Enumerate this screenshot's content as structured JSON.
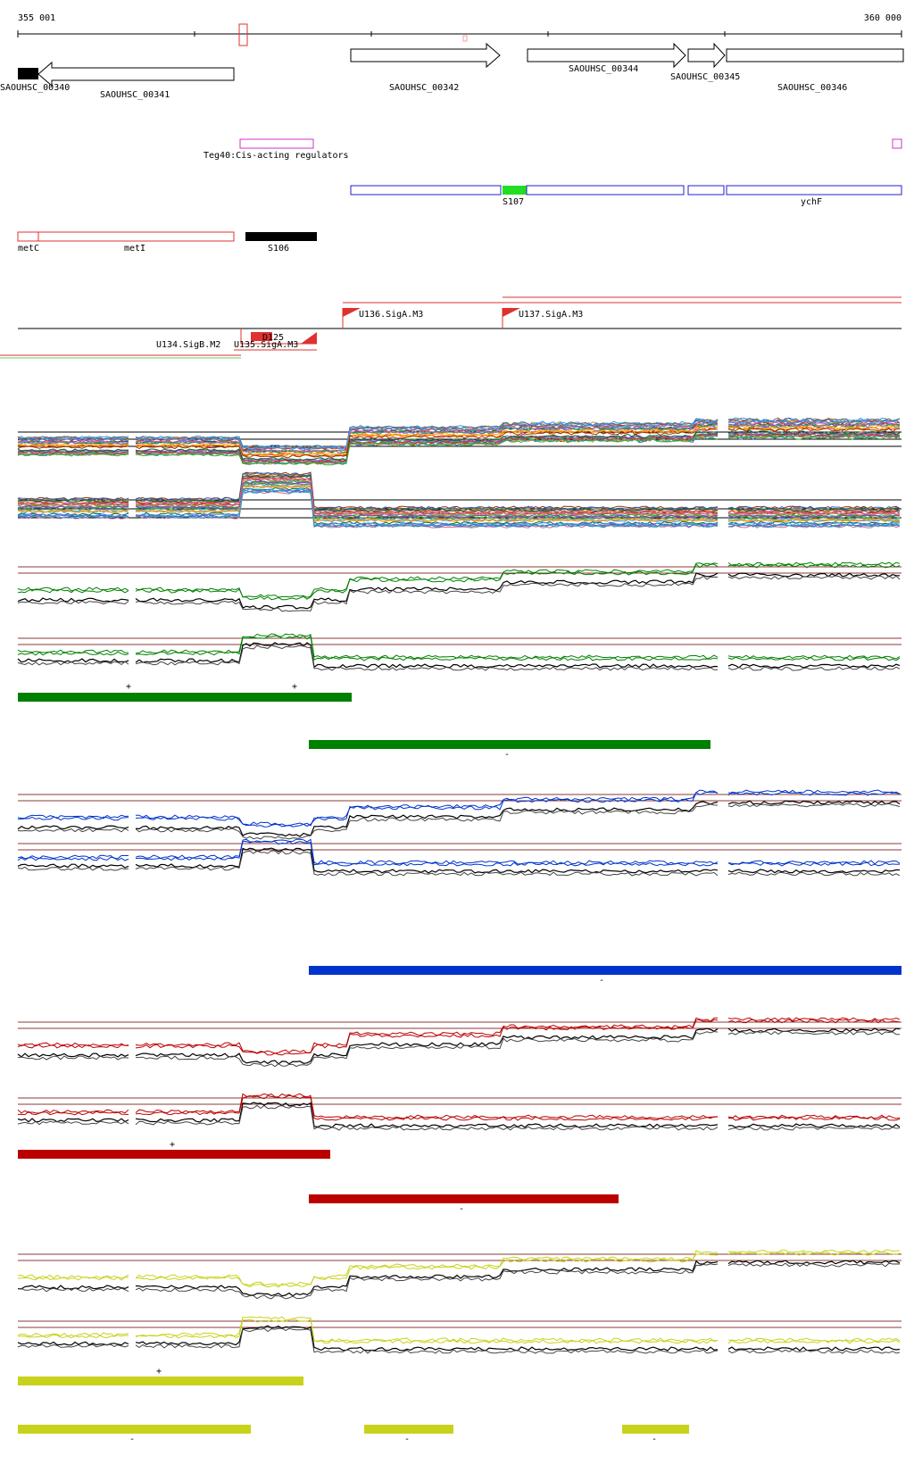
{
  "ruler": {
    "start_label": "355 001",
    "end_label": "360 000"
  },
  "genes": [
    {
      "label": "SAOUHSC_00340",
      "strand": "-",
      "filled": true
    },
    {
      "label": "SAOUHSC_00341",
      "strand": "-"
    },
    {
      "label": "SAOUHSC_00342",
      "strand": "+"
    },
    {
      "label": "SAOUHSC_00344",
      "strand": "+"
    },
    {
      "label": "SAOUHSC_00345",
      "strand": "+"
    },
    {
      "label": "SAOUHSC_00346",
      "strand": "+"
    }
  ],
  "regulators": [
    {
      "label": "Teg40:Cis-acting regulators"
    }
  ],
  "blue_features": [
    {
      "label": "S107"
    },
    {
      "label": "ychF"
    }
  ],
  "red_features": [
    {
      "label": "metC"
    },
    {
      "label": "metI"
    },
    {
      "label": "S106"
    }
  ],
  "promoters": [
    {
      "label": "U134.SigB.M2"
    },
    {
      "label": "U135.SigA.M3"
    },
    {
      "label": "D125"
    },
    {
      "label": "U136.SigA.M3"
    },
    {
      "label": "U137.SigA.M3"
    }
  ],
  "colors": {
    "green": "#008000",
    "blue": "#0033cc",
    "red": "#bb0000",
    "yellow": "#c8d21a",
    "magenta": "#cc33cc",
    "feature_red": "#e03030",
    "feature_blue": "#2222cc",
    "bright_green": "#22dd22",
    "threshold": "#8b3a3a"
  },
  "conditions": [
    {
      "color": "green",
      "plus": "+",
      "minus": "-"
    },
    {
      "color": "blue",
      "plus": "+",
      "minus": "-"
    },
    {
      "color": "red",
      "plus": "+",
      "minus": "-"
    },
    {
      "color": "yellow",
      "plus": "+",
      "minus": "-"
    }
  ]
}
